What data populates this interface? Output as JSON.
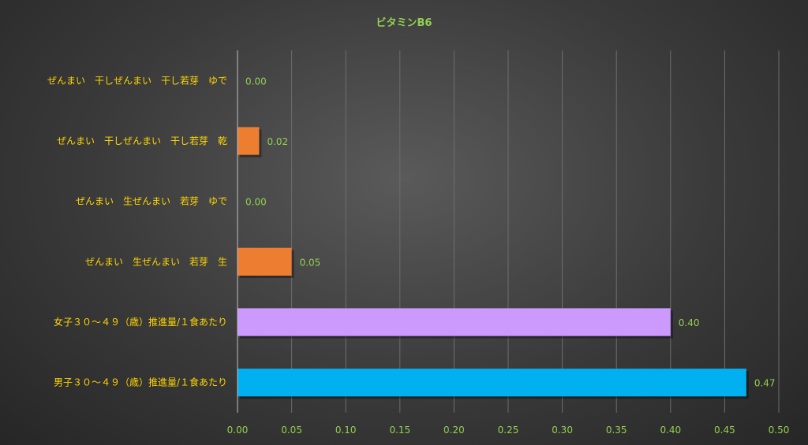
{
  "chart_data": {
    "type": "bar",
    "orientation": "horizontal",
    "title": "ビタミンB6",
    "categories": [
      "ぜんまい　干しぜんまい　干し若芽　ゆで",
      "ぜんまい　干しぜんまい　干し若芽　乾",
      "ぜんまい　生ぜんまい　若芽　ゆで",
      "ぜんまい　生ぜんまい　若芽　生",
      "女子３０～４９（歳）推進量/１食あたり",
      "男子３０～４９（歳）推進量/１食あたり"
    ],
    "values": [
      0.0,
      0.02,
      0.0,
      0.05,
      0.4,
      0.47
    ],
    "value_labels": [
      "0.00",
      "0.02",
      "0.00",
      "0.05",
      "0.40",
      "0.47"
    ],
    "bar_colors": [
      "#ed7d31",
      "#ed7d31",
      "#ed7d31",
      "#ed7d31",
      "#cc99ff",
      "#00b0f0"
    ],
    "xlim": [
      0,
      0.5
    ],
    "xticks": [
      "0.00",
      "0.05",
      "0.10",
      "0.15",
      "0.20",
      "0.25",
      "0.30",
      "0.35",
      "0.40",
      "0.45",
      "0.50"
    ],
    "xlabel": "",
    "ylabel": "",
    "grid": "vertical",
    "legend": "none"
  }
}
